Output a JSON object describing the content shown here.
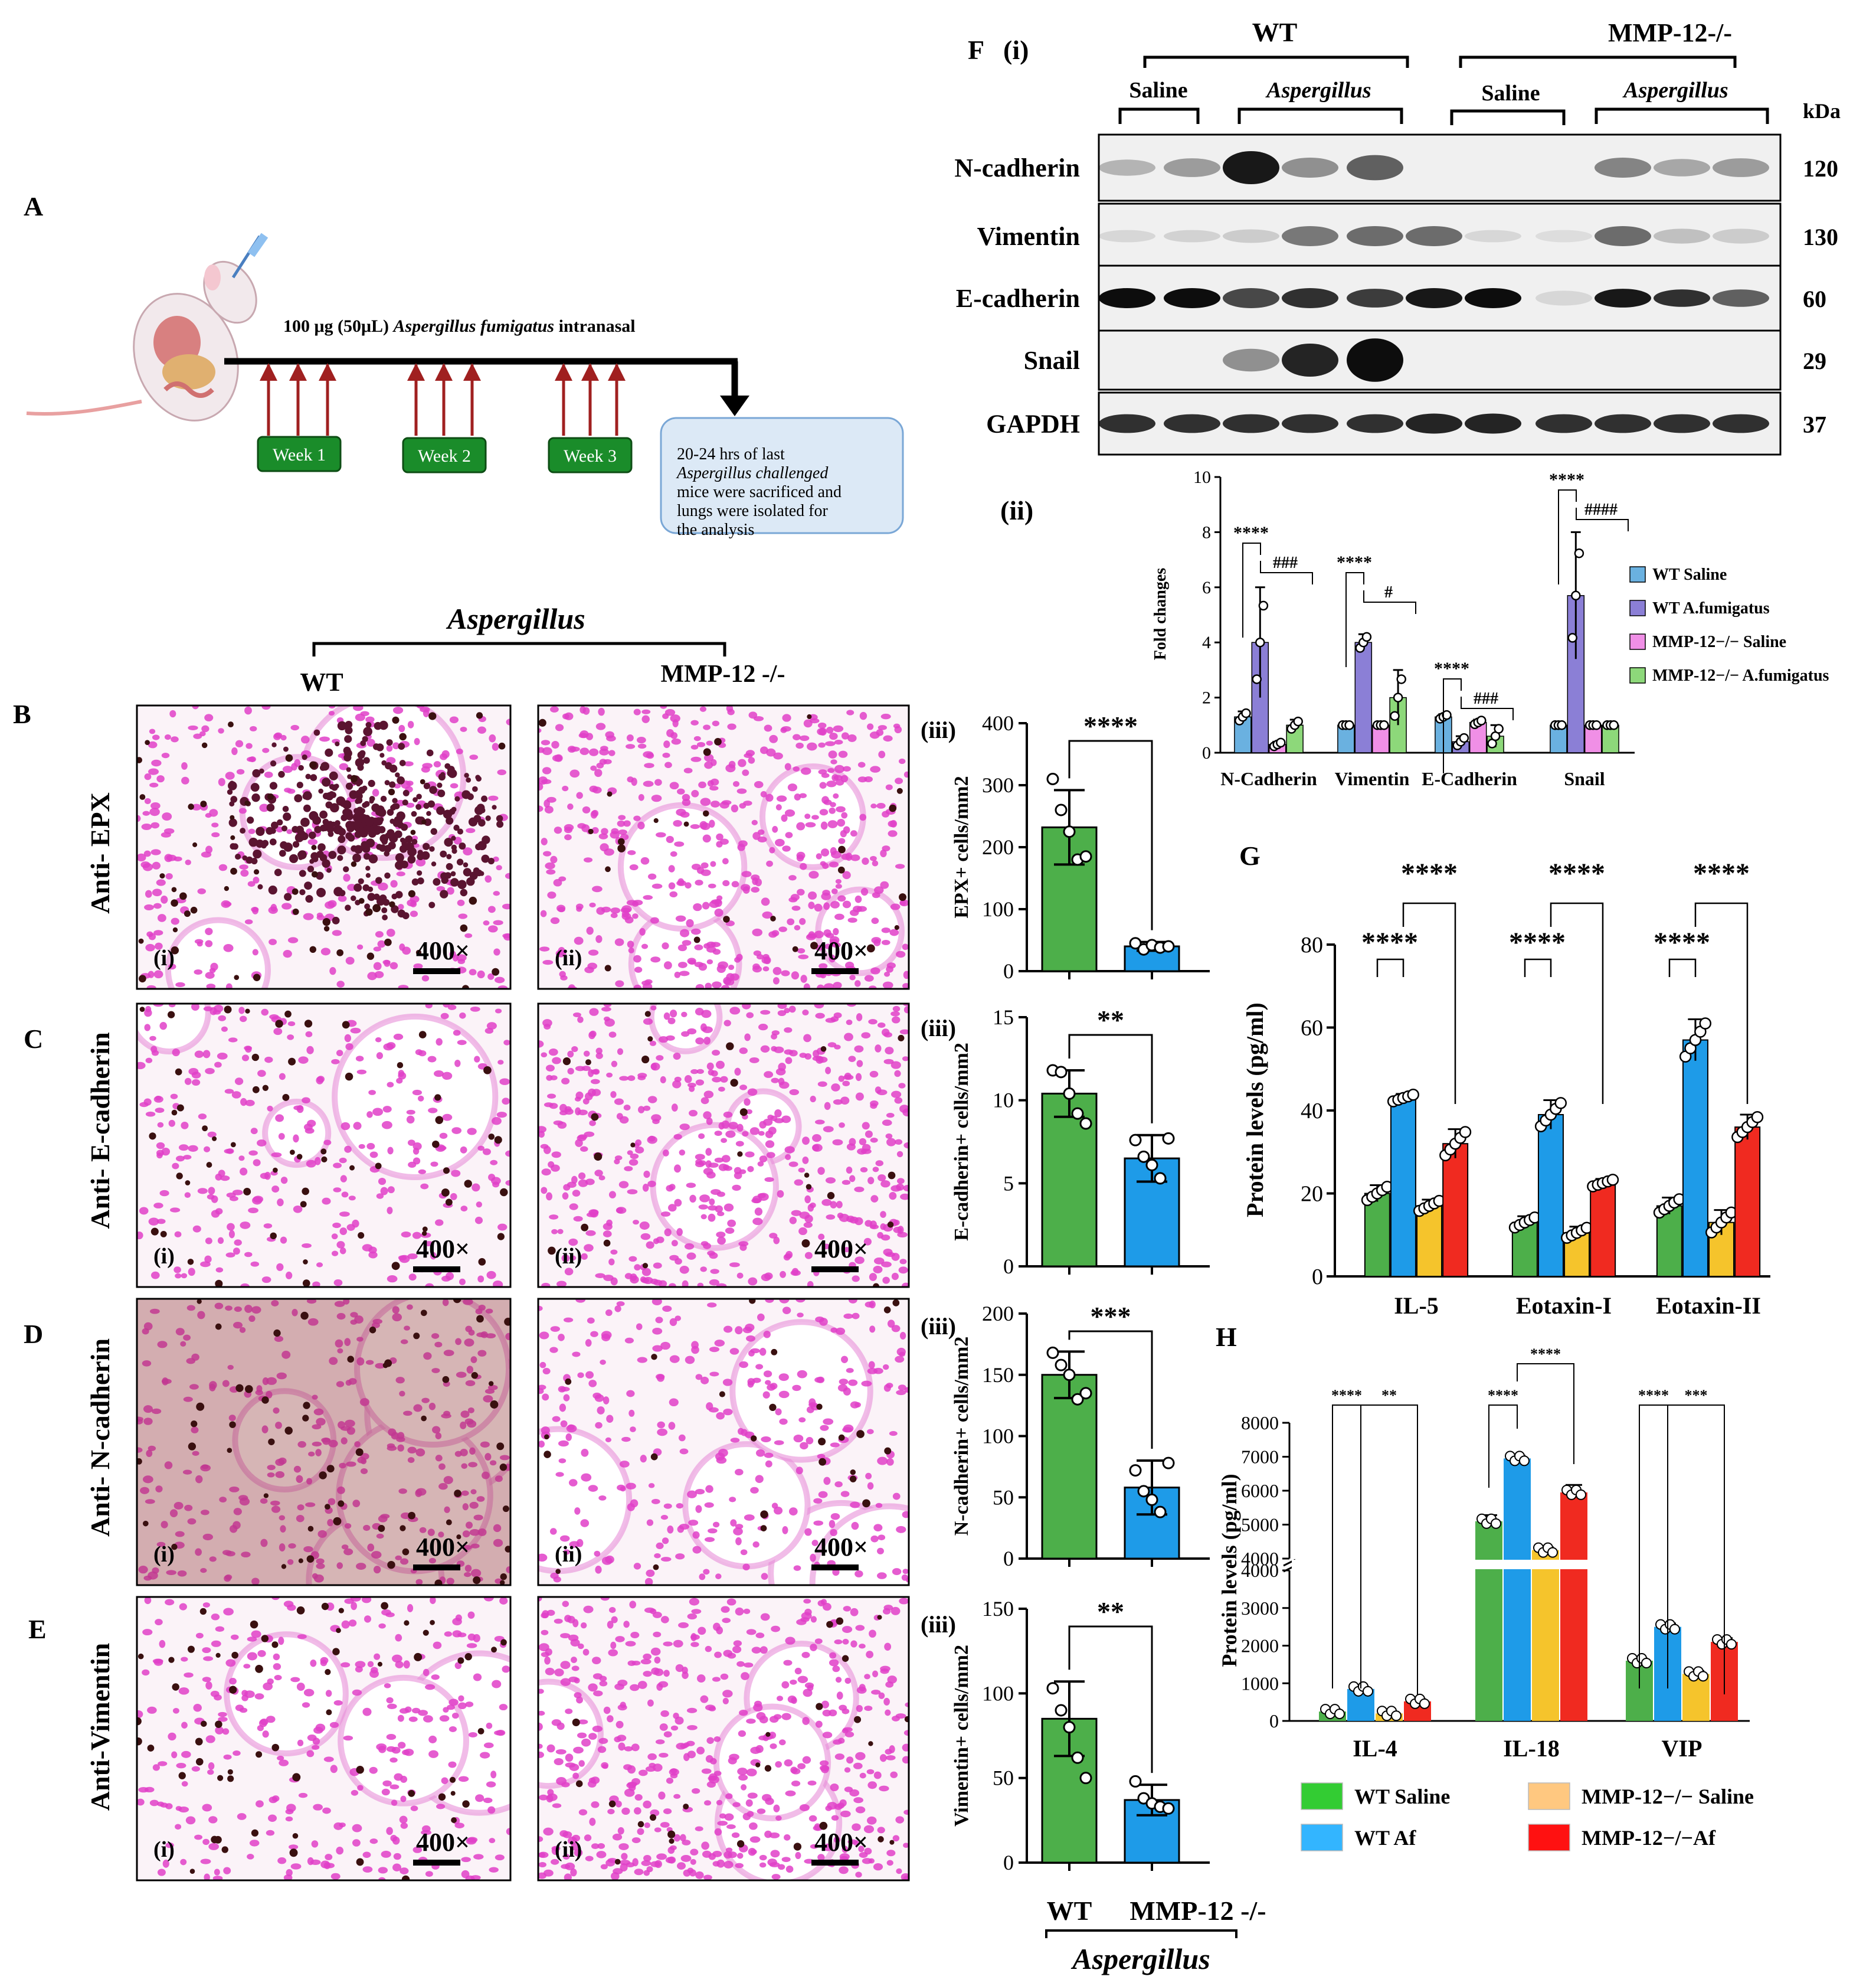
{
  "panel_letters": {
    "A": "A",
    "B": "B",
    "C": "C",
    "D": "D",
    "E": "E",
    "F": "F",
    "F_i": "(i)",
    "F_ii": "(ii)",
    "G": "G",
    "H": "H"
  },
  "panel_A": {
    "dose_prefix": "100 μg (50μL)",
    "dose_species": "Aspergillus fumigatus",
    "dose_suffix": "intranasal",
    "weeks": [
      "Week 1",
      "Week 2",
      "Week 3"
    ],
    "note_lines": [
      "20-24 hrs of last",
      "Aspergillus challenged",
      "mice were sacrificed and",
      "lungs were isolated for",
      "the analysis"
    ]
  },
  "histology": {
    "group_label": "Aspergillus",
    "col_labels": [
      "WT",
      "MMP-12 -/-"
    ],
    "row_labels": [
      "Anti- EPX",
      "Anti- E-cadherin",
      "Anti- N-cadherin",
      "Anti-Vimentin"
    ],
    "sub_labels": [
      "(i)",
      "(ii)"
    ],
    "magnification": "400×",
    "stain_colors": {
      "background": "#fbf3f8",
      "nuclei": "#e040c8",
      "positive": "#3a1010",
      "dense_wt_epx": "#5a1430"
    }
  },
  "panel_iii_label": "(iii)",
  "bottom_group": {
    "x_labels": [
      "WT",
      "MMP-12 -/-"
    ],
    "group": "Aspergillus"
  },
  "western": {
    "top_groups": [
      "WT",
      "MMP-12-/-"
    ],
    "sub_groups": [
      "Saline",
      "Aspergillus",
      "Saline",
      "Aspergillus"
    ],
    "kda_header": "kDa",
    "bands": [
      {
        "name": "N-cadherin",
        "kda": "120"
      },
      {
        "name": "Vimentin",
        "kda": "130"
      },
      {
        "name": "E-cadherin",
        "kda": "60"
      },
      {
        "name": "Snail",
        "kda": "29"
      },
      {
        "name": "GAPDH",
        "kda": "37"
      }
    ]
  },
  "chart_data": [
    {
      "id": "B_iii",
      "type": "bar",
      "ylabel": "EPX+ cells/mm2",
      "ylim": [
        0,
        400
      ],
      "yticks": [
        0,
        100,
        200,
        300,
        400
      ],
      "categories": [
        "WT",
        "MMP-12 -/-"
      ],
      "values": [
        232,
        40
      ],
      "errors": [
        60,
        7
      ],
      "points": [
        [
          310,
          260,
          225,
          180,
          185
        ],
        [
          45,
          35,
          42,
          38,
          40
        ]
      ],
      "colors": [
        "#4daf4a",
        "#1e9be8"
      ],
      "significance": "****"
    },
    {
      "id": "C_iii",
      "type": "bar",
      "ylabel": "E-cadherin+ cells/mm2",
      "ylim": [
        0,
        15
      ],
      "yticks": [
        0,
        5,
        10,
        15
      ],
      "categories": [
        "WT",
        "MMP-12 -/-"
      ],
      "values": [
        10.4,
        6.5
      ],
      "errors": [
        1.4,
        1.4
      ],
      "points": [
        [
          11.8,
          11.7,
          10.4,
          9.2,
          8.6
        ],
        [
          7.6,
          6.6,
          6.1,
          5.3,
          7.7
        ]
      ],
      "colors": [
        "#4daf4a",
        "#1e9be8"
      ],
      "significance": "**"
    },
    {
      "id": "D_iii",
      "type": "bar",
      "ylabel": "N-cadherin+ cells/mm2",
      "ylim": [
        0,
        200
      ],
      "yticks": [
        0,
        50,
        100,
        150,
        200
      ],
      "categories": [
        "WT",
        "MMP-12 -/-"
      ],
      "values": [
        150,
        58
      ],
      "errors": [
        19,
        22
      ],
      "points": [
        [
          168,
          158,
          150,
          130,
          135
        ],
        [
          72,
          55,
          48,
          38,
          78
        ]
      ],
      "colors": [
        "#4daf4a",
        "#1e9be8"
      ],
      "significance": "***"
    },
    {
      "id": "E_iii",
      "type": "bar",
      "ylabel": "Vimentin+ cells/mm2",
      "ylim": [
        0,
        150
      ],
      "yticks": [
        0,
        50,
        100,
        150
      ],
      "categories": [
        "WT",
        "MMP-12 -/-"
      ],
      "values": [
        85,
        37
      ],
      "errors": [
        22,
        9
      ],
      "points": [
        [
          103,
          90,
          80,
          62,
          50
        ],
        [
          48,
          38,
          35,
          33,
          32
        ]
      ],
      "colors": [
        "#4daf4a",
        "#1e9be8"
      ],
      "significance": "**"
    },
    {
      "id": "F_ii",
      "type": "bar",
      "ylabel": "Fold changes",
      "ylim": [
        0,
        10
      ],
      "yticks": [
        0,
        2,
        4,
        6,
        8,
        10
      ],
      "categories": [
        "N-Cadherin",
        "Vimentin",
        "E-Cadherin",
        "Snail"
      ],
      "series": [
        {
          "name": "WT Saline",
          "color": "#6ab1e0",
          "values": [
            1.3,
            1.0,
            1.3,
            1.0
          ],
          "errors": [
            0.2,
            0,
            0.1,
            0
          ]
        },
        {
          "name": "WT A.fumigatus",
          "color": "#8b7fd6",
          "values": [
            4.0,
            4.0,
            0.4,
            5.7
          ],
          "errors": [
            2.0,
            0.3,
            0.2,
            2.3
          ]
        },
        {
          "name": "MMP-12−/− Saline",
          "color": "#f08fe6",
          "values": [
            0.3,
            1.0,
            1.1,
            1.0
          ],
          "errors": [
            0.1,
            0,
            0.1,
            0
          ]
        },
        {
          "name": "MMP-12−/− A.fumigatus",
          "color": "#8dd87a",
          "values": [
            1.0,
            2.0,
            0.6,
            1.0
          ],
          "errors": [
            0.2,
            1.0,
            0.4,
            0
          ]
        }
      ],
      "significance": [
        [
          "****",
          "###"
        ],
        [
          "****",
          "#"
        ],
        [
          "****",
          "###"
        ],
        [
          "****",
          "####"
        ]
      ]
    },
    {
      "id": "G",
      "type": "bar",
      "ylabel": "Protein levels (pg/ml)",
      "ylim": [
        0,
        80
      ],
      "yticks": [
        0,
        20,
        40,
        60,
        80
      ],
      "categories": [
        "IL-5",
        "Eotaxin-I",
        "Eotaxin-II"
      ],
      "series": [
        {
          "name": "WT Saline",
          "color": "#4daf4a",
          "values": [
            20,
            13,
            17
          ],
          "errors": [
            2,
            1.5,
            2
          ]
        },
        {
          "name": "WT Af",
          "color": "#1e9be8",
          "values": [
            43,
            39,
            57
          ],
          "errors": [
            1,
            3.5,
            5
          ]
        },
        {
          "name": "MMP-12−/− Saline",
          "color": "#f5c42c",
          "values": [
            17,
            10.5,
            13
          ],
          "errors": [
            1.5,
            1.5,
            3
          ]
        },
        {
          "name": "MMP-12−/−Af",
          "color": "#f02a20",
          "values": [
            32,
            22.5,
            36
          ],
          "errors": [
            3.5,
            1,
            3
          ]
        }
      ],
      "significance": "****"
    },
    {
      "id": "H",
      "type": "bar",
      "ylabel": "Protein levels (pg/ml)",
      "y_break": [
        4000,
        4000
      ],
      "yticks_lower": [
        0,
        1000,
        2000,
        3000,
        4000
      ],
      "yticks_upper": [
        4000,
        5000,
        6000,
        7000,
        8000
      ],
      "categories": [
        "IL-4",
        "IL-18",
        "VIP"
      ],
      "series": [
        {
          "name": "WT Saline",
          "color": "#4daf4a",
          "values": [
            250,
            5100,
            1600
          ],
          "errors": [
            60,
            180,
            60
          ]
        },
        {
          "name": "WT Af",
          "color": "#1e9be8",
          "values": [
            850,
            6950,
            2500
          ],
          "errors": [
            60,
            80,
            90
          ]
        },
        {
          "name": "MMP-12−/− Saline",
          "color": "#f5c42c",
          "values": [
            200,
            4250,
            1250
          ],
          "errors": [
            40,
            80,
            80
          ]
        },
        {
          "name": "MMP-12−/−Af",
          "color": "#f02a20",
          "values": [
            520,
            5950,
            2100
          ],
          "errors": [
            60,
            220,
            100
          ]
        }
      ],
      "significance": [
        [
          "****",
          "**"
        ],
        [
          "****",
          "****"
        ],
        [
          "****",
          "***"
        ]
      ]
    }
  ],
  "legend_GH": [
    {
      "label": "WT Saline",
      "color": "#33cc33"
    },
    {
      "label": "WT Af",
      "color": "#33b5ff"
    },
    {
      "label": "MMP-12−/− Saline",
      "color": "#ffc880"
    },
    {
      "label": "MMP-12−/−Af",
      "color": "#ff1111"
    }
  ]
}
